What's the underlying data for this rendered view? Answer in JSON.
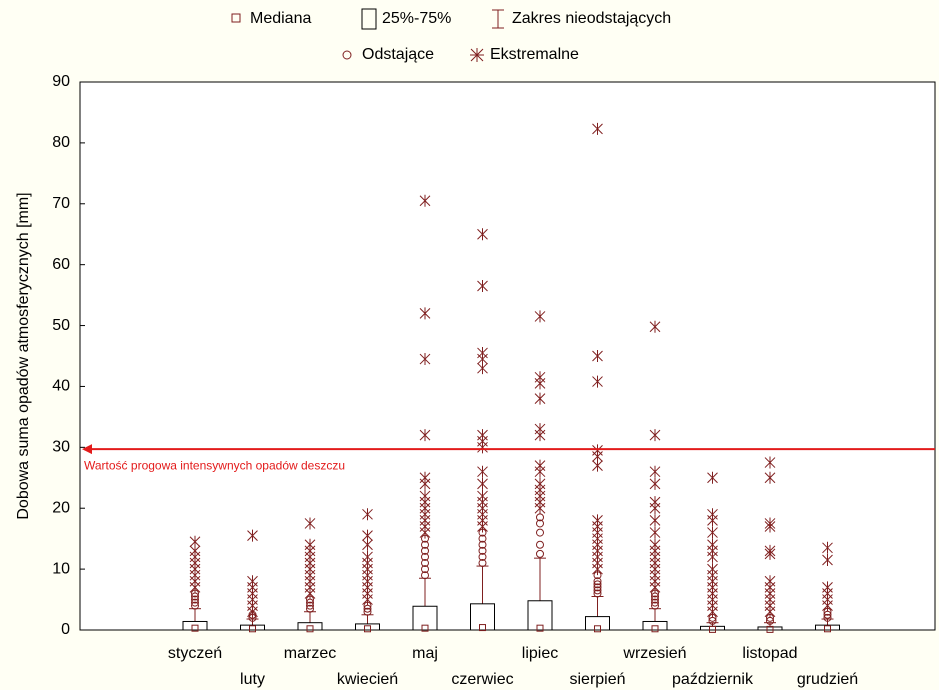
{
  "chart_data": {
    "type": "box",
    "y_label": "Dobowa suma opadów atmosferycznych [mm]",
    "legend": {
      "median": "Mediana",
      "box": "25%-75%",
      "whisker": "Zakres nieodstających",
      "outliers": "Odstające",
      "extremes": "Ekstremalne"
    },
    "color": "#7f1f1f",
    "threshold": {
      "value": 29.7,
      "label": "Wartość progowa intensywnych opadów deszczu",
      "color": "#e31b1b"
    },
    "ylim": [
      0,
      90
    ],
    "yticks": [
      0,
      10,
      20,
      30,
      40,
      50,
      60,
      70,
      80,
      90
    ],
    "grid": false,
    "categories": [
      "styczeń",
      "luty",
      "marzec",
      "kwiecień",
      "maj",
      "czerwiec",
      "lipiec",
      "sierpień",
      "wrzesień",
      "październik",
      "listopad",
      "grudzień"
    ],
    "boxes": [
      {
        "median": 0.3,
        "q1": 0,
        "q3": 1.4,
        "whisker_low": 0,
        "whisker_high": 3.5,
        "outliers": [
          4,
          4.5,
          5,
          5.5,
          6
        ],
        "extremes": [
          7,
          8,
          9,
          10,
          11,
          12,
          13,
          14.5
        ]
      },
      {
        "median": 0.2,
        "q1": 0,
        "q3": 0.8,
        "whisker_low": 0,
        "whisker_high": 1.8,
        "outliers": [
          2,
          2.5
        ],
        "extremes": [
          3,
          4,
          5,
          6,
          7,
          8,
          15.5
        ]
      },
      {
        "median": 0.2,
        "q1": 0,
        "q3": 1.2,
        "whisker_low": 0,
        "whisker_high": 3,
        "outliers": [
          3.5,
          4,
          4.5,
          5
        ],
        "extremes": [
          6,
          7,
          8,
          9,
          10,
          11,
          12,
          13,
          14,
          17.5
        ]
      },
      {
        "median": 0.2,
        "q1": 0,
        "q3": 1,
        "whisker_low": 0,
        "whisker_high": 2.5,
        "outliers": [
          3,
          3.5,
          4
        ],
        "extremes": [
          5,
          6,
          7,
          8,
          9,
          10,
          11,
          12,
          14,
          15.5,
          19
        ]
      },
      {
        "median": 0.3,
        "q1": 0,
        "q3": 3.9,
        "whisker_low": 0,
        "whisker_high": 8.5,
        "outliers": [
          9,
          10,
          11,
          12,
          13,
          14,
          15
        ],
        "extremes": [
          16,
          17,
          18,
          19,
          20,
          21,
          22,
          24,
          25,
          32,
          44.5,
          52,
          70.5
        ]
      },
      {
        "median": 0.4,
        "q1": 0,
        "q3": 4.3,
        "whisker_low": 0,
        "whisker_high": 10.5,
        "outliers": [
          11,
          12,
          13,
          14,
          15,
          16
        ],
        "extremes": [
          17,
          18,
          19,
          20,
          21,
          22,
          24,
          26,
          30,
          31,
          32,
          43,
          44.5,
          45.5,
          56.5,
          65
        ]
      },
      {
        "median": 0.3,
        "q1": 0,
        "q3": 4.8,
        "whisker_low": 0,
        "whisker_high": 11.8,
        "outliers": [
          12.5,
          14,
          16,
          17.5,
          18.5
        ],
        "extremes": [
          20,
          21,
          22,
          23,
          24,
          26,
          27,
          32,
          33,
          38,
          40.5,
          41.5,
          51.5
        ]
      },
      {
        "median": 0.2,
        "q1": 0,
        "q3": 2.2,
        "whisker_low": 0,
        "whisker_high": 5.5,
        "outliers": [
          6,
          6.5,
          7,
          7.5,
          8,
          9
        ],
        "extremes": [
          10,
          11,
          12,
          13,
          14,
          15,
          16,
          17,
          18,
          27,
          28.5,
          29.5,
          40.8,
          45,
          82.3
        ]
      },
      {
        "median": 0.2,
        "q1": 0,
        "q3": 1.4,
        "whisker_low": 0,
        "whisker_high": 3.5,
        "outliers": [
          4,
          4.5,
          5,
          5.5,
          6
        ],
        "extremes": [
          7,
          8,
          9,
          10,
          11,
          12,
          13,
          14,
          16,
          18,
          20,
          21,
          24,
          26,
          32,
          49.8
        ]
      },
      {
        "median": 0.1,
        "q1": 0,
        "q3": 0.6,
        "whisker_low": 0,
        "whisker_high": 1.2,
        "outliers": [
          1.5,
          2
        ],
        "extremes": [
          3,
          4,
          5,
          6,
          7,
          8,
          9,
          10,
          12,
          13,
          14,
          16,
          18,
          19,
          25
        ]
      },
      {
        "median": 0.1,
        "q1": 0,
        "q3": 0.5,
        "whisker_low": 0,
        "whisker_high": 1.2,
        "outliers": [
          1.5,
          2
        ],
        "extremes": [
          3,
          4,
          5,
          6,
          7,
          8,
          12.5,
          13,
          17,
          17.5,
          25,
          27.5
        ]
      },
      {
        "median": 0.2,
        "q1": 0,
        "q3": 0.8,
        "whisker_low": 0,
        "whisker_high": 1.8,
        "outliers": [
          2,
          2.5,
          3
        ],
        "extremes": [
          4,
          5,
          6,
          7,
          11.5,
          13.5
        ]
      }
    ]
  }
}
